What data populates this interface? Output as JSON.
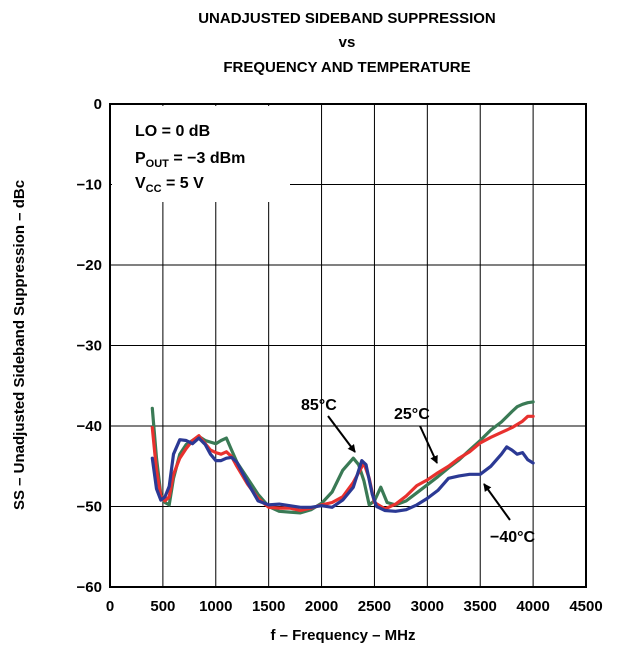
{
  "chart_data": {
    "type": "line",
    "title": [
      "UNADJUSTED SIDEBAND SUPPRESSION",
      "vs",
      "FREQUENCY AND TEMPERATURE"
    ],
    "xlabel": "f – Frequency – MHz",
    "ylabel": "SS – Unadjusted Sideband Suppression – dBc",
    "xlim": [
      0,
      4500
    ],
    "ylim": [
      -60,
      0
    ],
    "x_ticks": [
      0,
      500,
      1000,
      1500,
      2000,
      2500,
      3000,
      3500,
      4000,
      4500
    ],
    "x_tick_labels": [
      "0",
      "500",
      "1000",
      "1500",
      "2000",
      "2500",
      "3000",
      "3500",
      "4000",
      "4500"
    ],
    "y_ticks": [
      0,
      -10,
      -20,
      -30,
      -40,
      -50,
      -60
    ],
    "y_tick_labels": [
      "0",
      "−10",
      "−20",
      "−30",
      "−40",
      "−50",
      "−60"
    ],
    "grid": true,
    "conditions": {
      "lo": "LO = 0 dB",
      "pout_main": "P",
      "pout_sub": "OUT",
      "pout_rest": " = −3 dBm",
      "vcc_main": "V",
      "vcc_sub": "CC",
      "vcc_rest": " = 5 V"
    },
    "series": [
      {
        "name": "85°C",
        "color": "#3a7a55",
        "points": [
          [
            400,
            -37.8
          ],
          [
            440,
            -44
          ],
          [
            480,
            -48.5
          ],
          [
            520,
            -49.5
          ],
          [
            560,
            -49.8
          ],
          [
            600,
            -46.5
          ],
          [
            660,
            -43.5
          ],
          [
            720,
            -42.3
          ],
          [
            780,
            -41.8
          ],
          [
            840,
            -41.3
          ],
          [
            900,
            -41.8
          ],
          [
            950,
            -42
          ],
          [
            1000,
            -42.2
          ],
          [
            1050,
            -41.8
          ],
          [
            1100,
            -41.5
          ],
          [
            1150,
            -43
          ],
          [
            1200,
            -44.5
          ],
          [
            1300,
            -46.5
          ],
          [
            1400,
            -48.5
          ],
          [
            1500,
            -50
          ],
          [
            1600,
            -50.6
          ],
          [
            1700,
            -50.7
          ],
          [
            1800,
            -50.8
          ],
          [
            1900,
            -50.4
          ],
          [
            2000,
            -49.6
          ],
          [
            2100,
            -48.2
          ],
          [
            2200,
            -45.5
          ],
          [
            2300,
            -44
          ],
          [
            2350,
            -44.8
          ],
          [
            2400,
            -46.8
          ],
          [
            2450,
            -49.8
          ],
          [
            2500,
            -49.3
          ],
          [
            2560,
            -47.6
          ],
          [
            2620,
            -49.5
          ],
          [
            2700,
            -49.8
          ],
          [
            2800,
            -49.3
          ],
          [
            2900,
            -48.3
          ],
          [
            3000,
            -47.3
          ],
          [
            3100,
            -46.3
          ],
          [
            3200,
            -45.2
          ],
          [
            3300,
            -44.2
          ],
          [
            3400,
            -43
          ],
          [
            3500,
            -41.8
          ],
          [
            3600,
            -40.5
          ],
          [
            3700,
            -39.5
          ],
          [
            3800,
            -38.2
          ],
          [
            3850,
            -37.6
          ],
          [
            3900,
            -37.3
          ],
          [
            3950,
            -37.1
          ],
          [
            4000,
            -37
          ]
        ]
      },
      {
        "name": "25°C",
        "color": "#e8312e",
        "points": [
          [
            400,
            -40.2
          ],
          [
            440,
            -45.5
          ],
          [
            480,
            -48.7
          ],
          [
            520,
            -49.3
          ],
          [
            560,
            -48.8
          ],
          [
            600,
            -46
          ],
          [
            660,
            -44
          ],
          [
            720,
            -42.8
          ],
          [
            780,
            -41.8
          ],
          [
            840,
            -41.2
          ],
          [
            900,
            -42.2
          ],
          [
            950,
            -43
          ],
          [
            1000,
            -43.3
          ],
          [
            1050,
            -43.5
          ],
          [
            1100,
            -43.2
          ],
          [
            1150,
            -43.8
          ],
          [
            1200,
            -45
          ],
          [
            1300,
            -47.2
          ],
          [
            1400,
            -49
          ],
          [
            1500,
            -50.1
          ],
          [
            1600,
            -50.2
          ],
          [
            1700,
            -50.2
          ],
          [
            1800,
            -50.5
          ],
          [
            1900,
            -50.2
          ],
          [
            2000,
            -49.8
          ],
          [
            2100,
            -49.5
          ],
          [
            2200,
            -48.8
          ],
          [
            2300,
            -47
          ],
          [
            2400,
            -44.6
          ],
          [
            2450,
            -46.5
          ],
          [
            2500,
            -49.5
          ],
          [
            2600,
            -50.3
          ],
          [
            2700,
            -49.7
          ],
          [
            2800,
            -48.7
          ],
          [
            2900,
            -47.4
          ],
          [
            3000,
            -46.7
          ],
          [
            3100,
            -45.8
          ],
          [
            3200,
            -45
          ],
          [
            3300,
            -44
          ],
          [
            3400,
            -43.2
          ],
          [
            3500,
            -42.1
          ],
          [
            3600,
            -41.4
          ],
          [
            3700,
            -40.8
          ],
          [
            3800,
            -40.2
          ],
          [
            3900,
            -39.4
          ],
          [
            3950,
            -38.8
          ],
          [
            4000,
            -38.8
          ]
        ]
      },
      {
        "name": "−40°C",
        "color": "#2b3994",
        "points": [
          [
            400,
            -44
          ],
          [
            440,
            -47.8
          ],
          [
            480,
            -49.2
          ],
          [
            520,
            -48.8
          ],
          [
            560,
            -47.5
          ],
          [
            600,
            -43.5
          ],
          [
            660,
            -41.7
          ],
          [
            720,
            -41.8
          ],
          [
            780,
            -42.2
          ],
          [
            840,
            -41.5
          ],
          [
            900,
            -42.3
          ],
          [
            950,
            -43.5
          ],
          [
            1000,
            -44.3
          ],
          [
            1050,
            -44.3
          ],
          [
            1100,
            -44
          ],
          [
            1150,
            -43.9
          ],
          [
            1200,
            -44.5
          ],
          [
            1300,
            -47
          ],
          [
            1400,
            -49.3
          ],
          [
            1500,
            -49.8
          ],
          [
            1600,
            -49.7
          ],
          [
            1700,
            -49.9
          ],
          [
            1800,
            -50.1
          ],
          [
            1900,
            -50.1
          ],
          [
            2000,
            -49.9
          ],
          [
            2100,
            -50.1
          ],
          [
            2200,
            -49.2
          ],
          [
            2300,
            -47.6
          ],
          [
            2380,
            -44.3
          ],
          [
            2420,
            -44.8
          ],
          [
            2480,
            -48.5
          ],
          [
            2520,
            -50
          ],
          [
            2600,
            -50.5
          ],
          [
            2700,
            -50.6
          ],
          [
            2800,
            -50.4
          ],
          [
            2900,
            -49.8
          ],
          [
            3000,
            -49
          ],
          [
            3100,
            -48
          ],
          [
            3200,
            -46.5
          ],
          [
            3300,
            -46.2
          ],
          [
            3400,
            -46
          ],
          [
            3500,
            -46
          ],
          [
            3600,
            -45
          ],
          [
            3700,
            -43.5
          ],
          [
            3750,
            -42.6
          ],
          [
            3800,
            -43
          ],
          [
            3850,
            -43.5
          ],
          [
            3900,
            -43.3
          ],
          [
            3950,
            -44.2
          ],
          [
            4000,
            -44.6
          ]
        ]
      }
    ],
    "annotations": [
      {
        "text": "85°C",
        "target_series": "85°C"
      },
      {
        "text": "25°C",
        "target_series": "25°C"
      },
      {
        "text": "−40°C",
        "target_series": "−40°C"
      }
    ]
  }
}
